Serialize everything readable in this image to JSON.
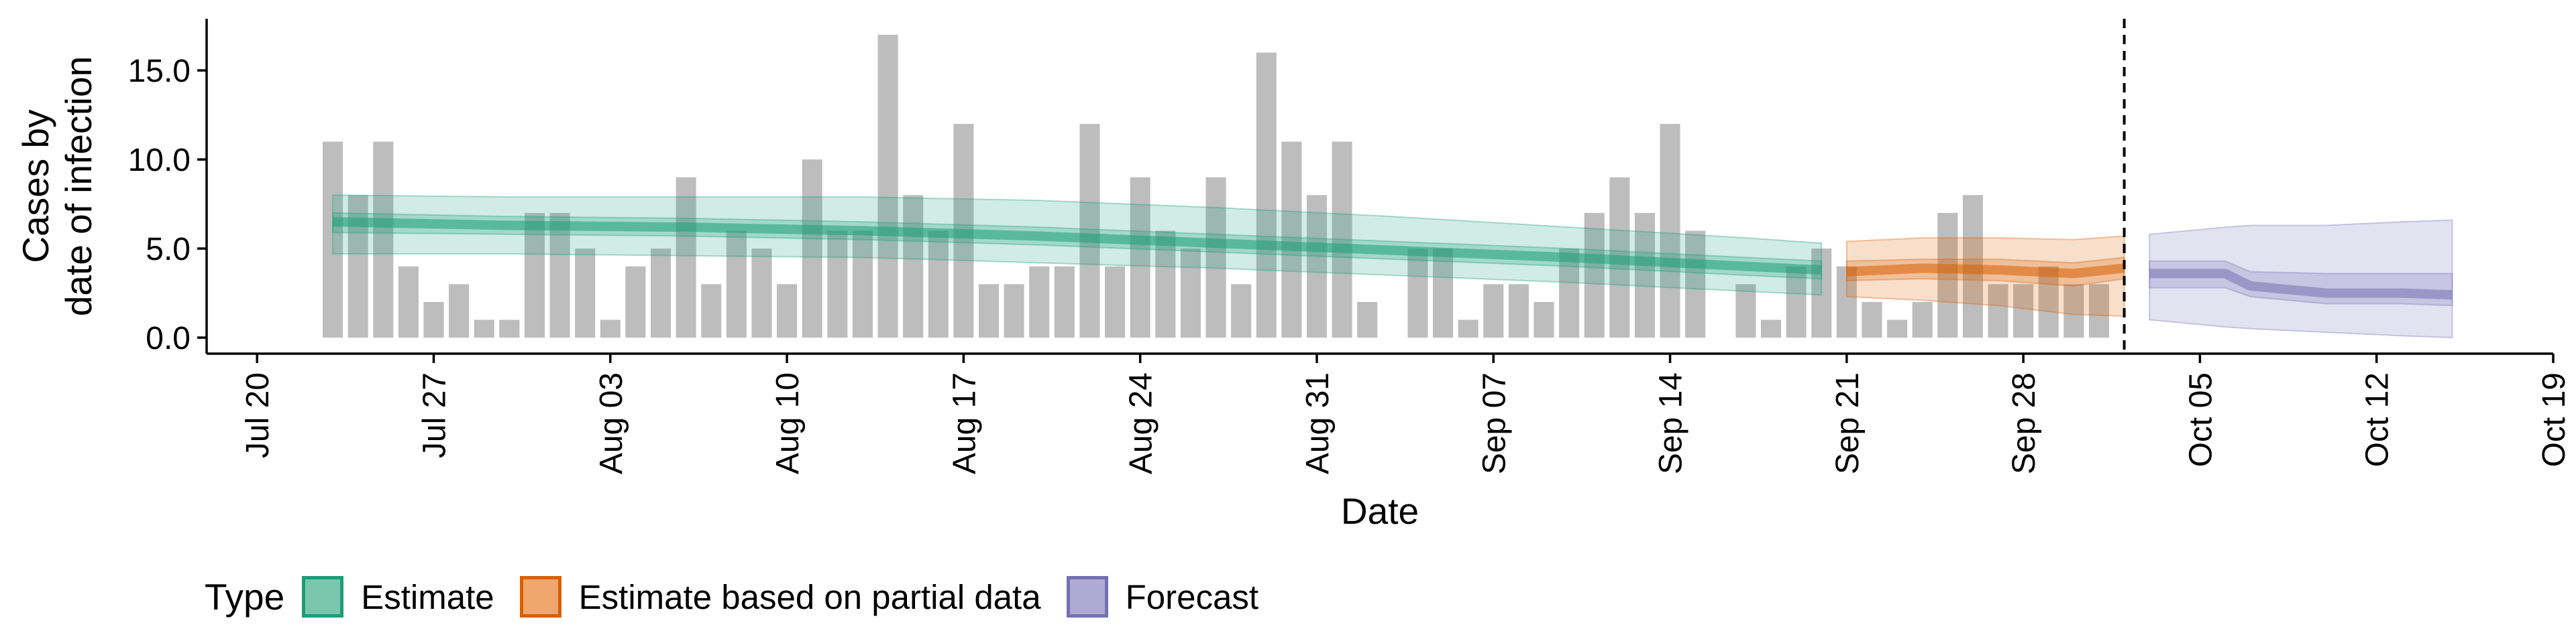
{
  "chart_data": {
    "type": "bar",
    "title": "",
    "xlabel": "Date",
    "ylabel": [
      "Cases by",
      "date of infection"
    ],
    "ylim": [
      -0.9,
      17.9
    ],
    "y_ticks": [
      0,
      5,
      10,
      15
    ],
    "y_tick_labels": [
      "0.0",
      "5.0",
      "10.0",
      "15.0"
    ],
    "x_range": [
      "2020-07-18",
      "2020-10-19"
    ],
    "x_ticks": [
      "2020-07-20",
      "2020-07-27",
      "2020-08-03",
      "2020-08-10",
      "2020-08-17",
      "2020-08-24",
      "2020-08-31",
      "2020-09-07",
      "2020-09-14",
      "2020-09-21",
      "2020-09-28",
      "2020-10-05",
      "2020-10-12",
      "2020-10-19"
    ],
    "x_tick_labels": [
      "Jul 20",
      "Jul 27",
      "Aug 03",
      "Aug 10",
      "Aug 17",
      "Aug 24",
      "Aug 31",
      "Sep 07",
      "Sep 14",
      "Sep 21",
      "Sep 28",
      "Oct 05",
      "Oct 12",
      "Oct 19"
    ],
    "grid": false,
    "bar_color": "#bdbdbd",
    "reported_cases": {
      "start_date": "2020-07-23",
      "values": [
        11,
        8,
        11,
        4,
        2,
        3,
        1,
        1,
        7,
        7,
        5,
        1,
        4,
        5,
        9,
        3,
        6,
        5,
        3,
        10,
        6,
        6,
        17,
        8,
        6,
        12,
        3,
        3,
        4,
        4,
        12,
        4,
        9,
        6,
        5,
        9,
        3,
        16,
        11,
        8,
        11,
        2,
        0,
        5,
        5,
        1,
        3,
        3,
        2,
        5,
        7,
        9,
        7,
        12,
        6,
        0,
        3,
        1,
        4,
        5,
        4,
        2,
        1,
        2,
        7,
        8,
        3,
        3,
        4,
        3,
        3
      ]
    },
    "forecast_date": "2020-10-02",
    "series": [
      {
        "name": "Estimate",
        "color": "#1b9e77",
        "x": [
          "2020-07-23",
          "2020-07-30",
          "2020-08-06",
          "2020-08-13",
          "2020-08-20",
          "2020-08-27",
          "2020-09-03",
          "2020-09-10",
          "2020-09-17",
          "2020-09-20"
        ],
        "median": [
          6.5,
          6.3,
          6.2,
          6.0,
          5.7,
          5.3,
          4.9,
          4.5,
          4.0,
          3.8
        ],
        "lower50": [
          5.9,
          5.8,
          5.7,
          5.5,
          5.2,
          4.8,
          4.4,
          4.0,
          3.5,
          3.3
        ],
        "upper50": [
          7.0,
          6.8,
          6.7,
          6.5,
          6.2,
          5.8,
          5.4,
          5.0,
          4.5,
          4.3
        ],
        "lower90": [
          4.7,
          4.7,
          4.6,
          4.5,
          4.2,
          3.9,
          3.5,
          3.1,
          2.6,
          2.4
        ],
        "upper90": [
          8.0,
          7.9,
          7.9,
          7.9,
          7.7,
          7.3,
          6.8,
          6.2,
          5.6,
          5.3
        ]
      },
      {
        "name": "Estimate based on partial data",
        "color": "#d95f02",
        "x": [
          "2020-09-21",
          "2020-09-24",
          "2020-09-27",
          "2020-09-30",
          "2020-10-02"
        ],
        "median": [
          3.7,
          3.9,
          3.8,
          3.6,
          3.9
        ],
        "lower50": [
          3.2,
          3.3,
          3.2,
          2.9,
          3.3
        ],
        "upper50": [
          4.3,
          4.4,
          4.4,
          4.2,
          4.5
        ],
        "lower90": [
          2.3,
          2.1,
          1.8,
          1.3,
          1.2
        ],
        "upper90": [
          5.4,
          5.6,
          5.6,
          5.5,
          5.7
        ]
      },
      {
        "name": "Forecast",
        "color": "#7570b3",
        "x": [
          "2020-10-03",
          "2020-10-06",
          "2020-10-07",
          "2020-10-10",
          "2020-10-13",
          "2020-10-15"
        ],
        "median": [
          3.6,
          3.6,
          2.9,
          2.5,
          2.5,
          2.4
        ],
        "lower50": [
          2.8,
          2.8,
          2.3,
          1.9,
          1.9,
          1.8
        ],
        "upper50": [
          4.3,
          4.3,
          3.7,
          3.6,
          3.6,
          3.6
        ],
        "lower90": [
          1.0,
          0.6,
          0.5,
          0.3,
          0.1,
          0.0
        ],
        "upper90": [
          5.8,
          6.2,
          6.3,
          6.3,
          6.5,
          6.6
        ]
      }
    ],
    "legend": {
      "title": "Type",
      "position": "bottom",
      "items": [
        "Estimate",
        "Estimate based on partial data",
        "Forecast"
      ]
    }
  }
}
